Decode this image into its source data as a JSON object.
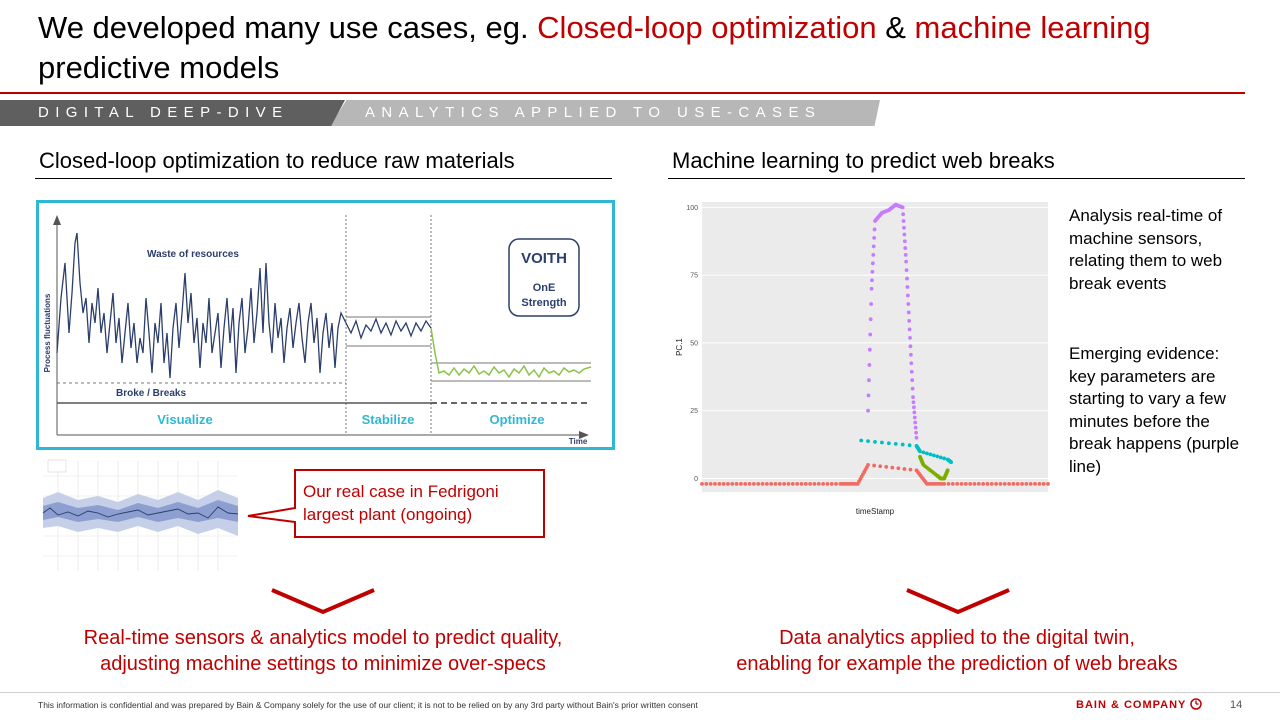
{
  "title": {
    "part1": "We developed many use cases, eg. ",
    "highlight1": "Closed-loop optimization",
    "part2": " & ",
    "highlight2": "machine learning",
    "part3": " predictive models"
  },
  "tags": {
    "left": "DIGITAL DEEP-DIVE",
    "right": "ANALYTICS APPLIED TO USE-CASES"
  },
  "left_section": {
    "heading": "Closed-loop optimization to reduce raw materials",
    "diagram": {
      "ylabel": "Process fluctuations",
      "waste_label": "Waste of resources",
      "broke_label": "Broke / Breaks",
      "phases": [
        "Visualize",
        "Stabilize",
        "Optimize"
      ],
      "time_label": "Time",
      "logo_brand": "VOITH",
      "logo_line1": "OnE",
      "logo_line2": "Strength"
    },
    "callout": "Our real case in Fedrigoni largest plant (ongoing)",
    "conclusion_line1": "Real-time sensors & analytics model to predict quality,",
    "conclusion_line2": "adjusting machine settings to minimize over-specs"
  },
  "right_section": {
    "heading": "Machine learning to predict web breaks",
    "text1": "Analysis real-time of machine sensors, relating them to web break events",
    "text2": "Emerging evidence: key parameters are starting to vary a few minutes before the break happens (purple line)",
    "conclusion_line1": "Data analytics applied to the digital twin,",
    "conclusion_line2": "enabling for example the prediction of web breaks"
  },
  "chart_data": {
    "type": "scatter",
    "xlabel": "timeStamp",
    "ylabel": "PC.1",
    "ylim": [
      -5,
      102
    ],
    "yticks": [
      "0",
      "25",
      "50",
      "75",
      "100"
    ],
    "grid": true,
    "series": [
      {
        "color": "#f06b63",
        "x": [
          0,
          10,
          20,
          30,
          40,
          45,
          48,
          62,
          65,
          70,
          80,
          90,
          100
        ],
        "y": [
          -2,
          -2,
          -2,
          -2,
          -2,
          -2,
          5,
          3,
          -2,
          -2,
          -2,
          -2,
          -2
        ]
      },
      {
        "color": "#c77cff",
        "x": [
          48,
          49,
          50,
          52,
          54,
          56,
          58,
          59,
          60,
          61,
          62
        ],
        "y": [
          25,
          70,
          95,
          98,
          99,
          101,
          100,
          80,
          55,
          30,
          15
        ]
      },
      {
        "color": "#00bfc4",
        "x": [
          46,
          62,
          63,
          71,
          72
        ],
        "y": [
          14,
          12,
          10,
          7,
          6
        ]
      },
      {
        "color": "#7cae00",
        "x": [
          63,
          64,
          68,
          69,
          70,
          71
        ],
        "y": [
          8,
          5,
          1,
          0,
          0,
          3
        ]
      }
    ]
  },
  "colors": {
    "accent": "#c00000",
    "voith_border": "#2fb8d4",
    "voith_line": "#2c3e6b",
    "optimize_line": "#8bc34a"
  },
  "footer": {
    "note": "This information is confidential and was prepared by Bain & Company solely for the use of our client; it is not to be relied on by any 3rd party without Bain's prior written consent",
    "brand": "BAIN & COMPANY",
    "page": "14"
  }
}
